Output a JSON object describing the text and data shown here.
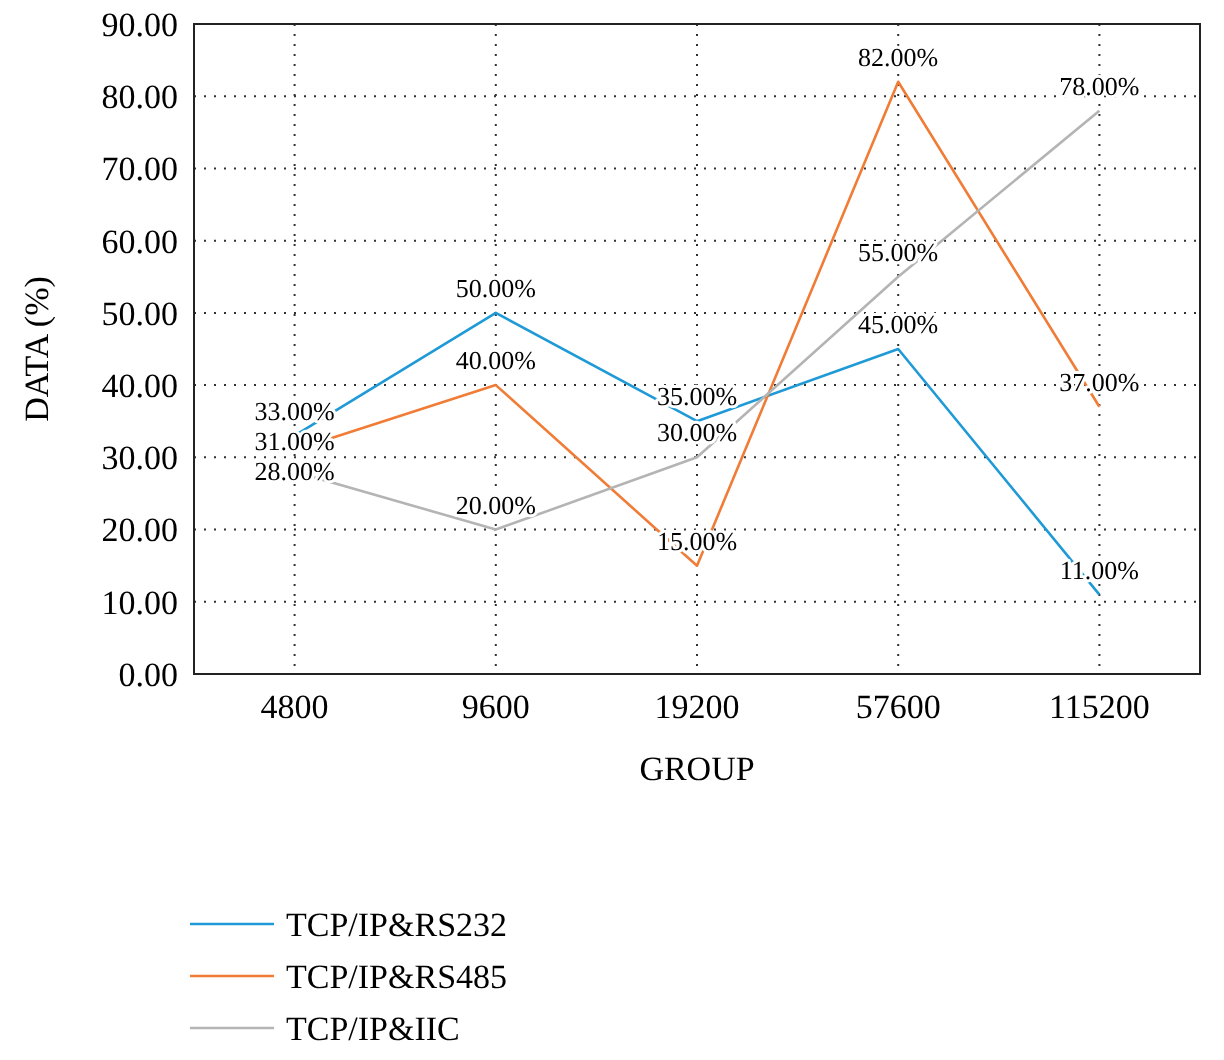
{
  "chart_data": {
    "type": "line",
    "xlabel": "GROUP",
    "ylabel": "DATA (%)",
    "categories": [
      "4800",
      "9600",
      "19200",
      "57600",
      "115200"
    ],
    "series": [
      {
        "name": "TCP/IP&RS232",
        "color": "#1f9ad6",
        "values": [
          33,
          50,
          35,
          45,
          11
        ],
        "value_labels": [
          "33.00%",
          "50.00%",
          "35.00%",
          "45.00%",
          "11.00%"
        ]
      },
      {
        "name": "TCP/IP&RS485",
        "color": "#f07c36",
        "values": [
          31,
          40,
          15,
          82,
          37
        ],
        "value_labels": [
          "31.00%",
          "40.00%",
          "15.00%",
          "82.00%",
          "37.00%"
        ]
      },
      {
        "name": "TCP/IP&IIC",
        "color": "#b4b4b4",
        "values": [
          28,
          20,
          30,
          55,
          78
        ],
        "value_labels": [
          "28.00%",
          "20.00%",
          "30.00%",
          "55.00%",
          "78.00%"
        ]
      }
    ],
    "ylim": [
      0,
      90
    ],
    "yticks": [
      {
        "value": 0,
        "label": "0.00"
      },
      {
        "value": 10,
        "label": "10.00"
      },
      {
        "value": 20,
        "label": "20.00"
      },
      {
        "value": 30,
        "label": "30.00"
      },
      {
        "value": 40,
        "label": "40.00"
      },
      {
        "value": 50,
        "label": "50.00"
      },
      {
        "value": 60,
        "label": "60.00"
      },
      {
        "value": 70,
        "label": "70.00"
      },
      {
        "value": 80,
        "label": "80.00"
      },
      {
        "value": 90,
        "label": "90.00"
      }
    ],
    "grid": true,
    "legend": "bottom",
    "marker": "none",
    "line_style": "solid"
  }
}
